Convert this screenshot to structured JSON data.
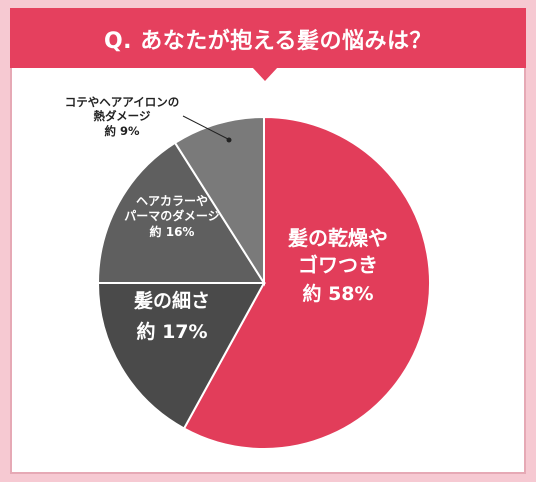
{
  "header": {
    "title": "Q. あなたが抱える髪の悩みは？"
  },
  "colors": {
    "banner": "#e5405e",
    "slices": [
      "#e23d5a",
      "#4a4a4a",
      "#5f5f5f",
      "#7a7a7a"
    ],
    "background": "#f6c9d2"
  },
  "chart_data": {
    "type": "pie",
    "title": "Q. あなたが抱える髪の悩みは？",
    "unit": "%",
    "slices": [
      {
        "name": "髪の乾燥やゴワつき",
        "label_lines": [
          "髪の乾燥や",
          "ゴワつき"
        ],
        "value_text": "約 58%",
        "value": 58
      },
      {
        "name": "髪の細さ",
        "label_lines": [
          "髪の細さ"
        ],
        "value_text": "約 17%",
        "value": 17
      },
      {
        "name": "ヘアカラーやパーマのダメージ",
        "label_lines": [
          "ヘアカラーや",
          "パーマのダメージ"
        ],
        "value_text": "約 16%",
        "value": 16
      },
      {
        "name": "コテやヘアアイロンの熱ダメージ",
        "label_lines": [
          "コテやヘアアイロンの",
          "熱ダメージ"
        ],
        "value_text": "約 9%",
        "value": 9
      }
    ]
  }
}
